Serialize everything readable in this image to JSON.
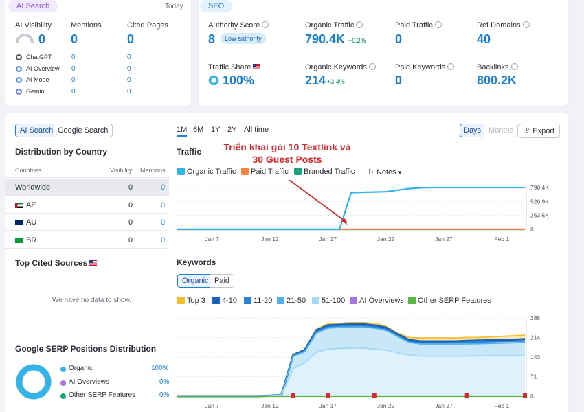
{
  "colors": {
    "accent": "#1c7fd6",
    "organic": "#34b3e8",
    "paid": "#f7843e",
    "branded": "#16a37a",
    "top3": "#f5bd29",
    "pos4_10": "#1863b8",
    "pos11_20": "#2a84d6",
    "pos21_50": "#53b1e8",
    "pos51_100": "#a3d8f3",
    "ai_overviews": "#a476e6",
    "other_serp": "#58b845",
    "annotation": "#d8282e"
  },
  "ai_card": {
    "tag": "AI Search",
    "date": "Today",
    "visibility": {
      "label": "AI Visibility",
      "value": "0"
    },
    "mentions": {
      "label": "Mentions",
      "value": "0"
    },
    "cited_pages": {
      "label": "Cited Pages",
      "value": "0"
    },
    "engines": [
      {
        "name": "ChatGPT",
        "icon": "chatgpt-icon",
        "mentions": "0",
        "cited": "0"
      },
      {
        "name": "AI Overview",
        "icon": "google-icon",
        "mentions": "0",
        "cited": "0"
      },
      {
        "name": "AI Mode",
        "icon": "google-icon",
        "mentions": "0",
        "cited": "0"
      },
      {
        "name": "Gemini",
        "icon": "gemini-icon",
        "mentions": "0",
        "cited": "0"
      }
    ]
  },
  "seo_card": {
    "tag": "SEO",
    "authority": {
      "label": "Authority Score",
      "value": "8",
      "badge": "Low authority"
    },
    "organic_traffic": {
      "label": "Organic Traffic",
      "value": "790.4K",
      "change": "+0.2%"
    },
    "paid_traffic": {
      "label": "Paid Traffic",
      "value": "0"
    },
    "ref_domains": {
      "label": "Ref.Domains",
      "value": "40"
    },
    "traffic_share": {
      "label": "Traffic Share",
      "value": "100%"
    },
    "organic_keywords": {
      "label": "Organic Keywords",
      "value": "214",
      "change": "+3.4%"
    },
    "paid_keywords": {
      "label": "Paid Keywords",
      "value": "0"
    },
    "backlinks": {
      "label": "Backlinks",
      "value": "800.2K"
    }
  },
  "left_panel": {
    "tabs": [
      "AI Search",
      "Google Search"
    ],
    "dist_title": "Distribution by Country",
    "columns": [
      "Countries",
      "Visibility",
      "Mentions"
    ],
    "rows": [
      {
        "name": "Worldwide",
        "flag": "",
        "visibility": "0",
        "mentions": "0"
      },
      {
        "name": "AE",
        "flag": "flag-ae-icon",
        "visibility": "0",
        "mentions": "0"
      },
      {
        "name": "AU",
        "flag": "flag-au-icon",
        "visibility": "0",
        "mentions": "0"
      },
      {
        "name": "BR",
        "flag": "flag-br-icon",
        "visibility": "0",
        "mentions": "0"
      }
    ],
    "cited_title": "Top Cited Sources",
    "no_data": "We have no data to show.",
    "serp_title": "Google SERP Positions Distribution",
    "serp_items": [
      {
        "label": "Organic",
        "value": "100%",
        "pct": 100,
        "color": "#34b3e8"
      },
      {
        "label": "AI Overviews",
        "value": "0%",
        "pct": 0,
        "color": "#a476e6"
      },
      {
        "label": "Other SERP Features",
        "value": "0%",
        "pct": 0,
        "color": "#16a37a"
      }
    ]
  },
  "toolbar": {
    "periods": [
      "1M",
      "6M",
      "1Y",
      "2Y",
      "All time"
    ],
    "active_period": "1M",
    "days": "Days",
    "months": "Months",
    "export": "Export"
  },
  "traffic": {
    "title": "Traffic",
    "legend": [
      "Organic Traffic",
      "Paid Traffic",
      "Branded Traffic"
    ],
    "notes": "Notes",
    "annotation_line1": "Triển khai gói 10 Textlink và",
    "annotation_line2": "30 Guest Posts"
  },
  "keywords": {
    "title": "Keywords",
    "tabs": [
      "Organic",
      "Paid"
    ],
    "legend": [
      "Top 3",
      "4-10",
      "11-20",
      "21-50",
      "51-100",
      "AI Overviews",
      "Other SERP Features"
    ]
  },
  "chart_data": [
    {
      "type": "line",
      "title": "Traffic",
      "x": [
        "Jan 4",
        "Jan 5",
        "Jan 6",
        "Jan 7",
        "Jan 8",
        "Jan 9",
        "Jan 10",
        "Jan 11",
        "Jan 12",
        "Jan 13",
        "Jan 14",
        "Jan 15",
        "Jan 16",
        "Jan 17",
        "Jan 18",
        "Jan 19",
        "Jan 20",
        "Jan 21",
        "Jan 22",
        "Jan 23",
        "Jan 24",
        "Jan 25",
        "Jan 26",
        "Jan 27",
        "Jan 28",
        "Jan 29",
        "Jan 30",
        "Jan 31",
        "Feb 1",
        "Feb 2",
        "Feb 3"
      ],
      "xticks": [
        "Jan 7",
        "Jan 12",
        "Jan 17",
        "Jan 22",
        "Jan 27",
        "Feb 1"
      ],
      "yticks": [
        "790.4K",
        "526.9K",
        "263.5K",
        "0"
      ],
      "ylim": [
        0,
        790400
      ],
      "series": [
        {
          "name": "Organic Traffic",
          "values": [
            0,
            0,
            0,
            0,
            0,
            0,
            0,
            0,
            0,
            0,
            0,
            0,
            0,
            0,
            0,
            690000,
            700000,
            705000,
            710000,
            740000,
            770000,
            785000,
            790000,
            790000,
            790000,
            790000,
            790000,
            790000,
            790000,
            790000,
            790400
          ]
        },
        {
          "name": "Paid Traffic",
          "values": [
            0,
            0,
            0,
            0,
            0,
            0,
            0,
            0,
            0,
            0,
            0,
            0,
            0,
            0,
            0,
            0,
            0,
            0,
            0,
            0,
            0,
            0,
            0,
            0,
            0,
            0,
            0,
            0,
            0,
            0,
            0
          ]
        },
        {
          "name": "Branded Traffic",
          "values": [
            0,
            0,
            0,
            0,
            0,
            0,
            0,
            0,
            0,
            0,
            0,
            0,
            0,
            0,
            0,
            0,
            0,
            0,
            0,
            0,
            0,
            0,
            0,
            0,
            0,
            0,
            0,
            0,
            0,
            0,
            0
          ]
        }
      ]
    },
    {
      "type": "area",
      "title": "Keywords",
      "x": [
        "Jan 4",
        "Jan 5",
        "Jan 6",
        "Jan 7",
        "Jan 8",
        "Jan 9",
        "Jan 10",
        "Jan 11",
        "Jan 12",
        "Jan 13",
        "Jan 14",
        "Jan 15",
        "Jan 16",
        "Jan 17",
        "Jan 18",
        "Jan 19",
        "Jan 20",
        "Jan 21",
        "Jan 22",
        "Jan 23",
        "Jan 24",
        "Jan 25",
        "Jan 26",
        "Jan 27",
        "Jan 28",
        "Jan 29",
        "Jan 30",
        "Jan 31",
        "Feb 1",
        "Feb 2",
        "Feb 3"
      ],
      "xticks": [
        "Jan 7",
        "Jan 12",
        "Jan 17",
        "Jan 22",
        "Jan 27",
        "Feb 1"
      ],
      "yticks": [
        "285",
        "214",
        "143",
        "71",
        "0"
      ],
      "ylim": [
        0,
        285
      ],
      "series": [
        {
          "name": "Top 3",
          "values": [
            0,
            0,
            0,
            0,
            0,
            0,
            0,
            0,
            2,
            5,
            152,
            170,
            244,
            263,
            265,
            268,
            268,
            265,
            255,
            230,
            214,
            212,
            212,
            212,
            212,
            214,
            214,
            216,
            218,
            220,
            222
          ]
        },
        {
          "name": "4-10",
          "values": [
            0,
            0,
            0,
            0,
            0,
            0,
            0,
            0,
            2,
            5,
            150,
            168,
            240,
            258,
            260,
            262,
            262,
            258,
            250,
            226,
            205,
            200,
            200,
            200,
            200,
            202,
            203,
            204,
            205,
            206,
            208
          ]
        },
        {
          "name": "11-20",
          "values": [
            0,
            0,
            0,
            0,
            0,
            0,
            0,
            0,
            2,
            5,
            148,
            165,
            235,
            253,
            255,
            256,
            256,
            252,
            244,
            222,
            200,
            194,
            194,
            194,
            195,
            196,
            197,
            198,
            199,
            200,
            200
          ]
        },
        {
          "name": "21-50",
          "values": [
            0,
            0,
            0,
            0,
            0,
            0,
            0,
            0,
            2,
            5,
            146,
            162,
            230,
            248,
            250,
            252,
            252,
            248,
            240,
            218,
            196,
            190,
            190,
            190,
            190,
            190,
            191,
            192,
            193,
            194,
            195
          ]
        },
        {
          "name": "51-100",
          "values": [
            0,
            0,
            0,
            0,
            0,
            0,
            0,
            0,
            2,
            5,
            100,
            122,
            160,
            172,
            174,
            175,
            175,
            172,
            168,
            158,
            150,
            146,
            146,
            146,
            146,
            146,
            147,
            148,
            148,
            148,
            148
          ]
        },
        {
          "name": "AI Overviews",
          "values": [
            0,
            0,
            0,
            0,
            0,
            0,
            0,
            0,
            0,
            0,
            0,
            0,
            0,
            0,
            0,
            0,
            0,
            0,
            0,
            0,
            0,
            0,
            0,
            0,
            0,
            0,
            0,
            0,
            0,
            0,
            0
          ]
        },
        {
          "name": "Other SERP Features",
          "values": [
            0,
            0,
            0,
            0,
            0,
            0,
            0,
            0,
            0,
            0,
            0,
            0,
            0,
            0,
            0,
            0,
            0,
            0,
            0,
            0,
            0,
            0,
            0,
            0,
            0,
            0,
            0,
            0,
            0,
            0,
            0
          ]
        }
      ]
    },
    {
      "type": "pie",
      "title": "Google SERP Positions Distribution",
      "categories": [
        "Organic",
        "AI Overviews",
        "Other SERP Features"
      ],
      "values": [
        100,
        0,
        0
      ]
    }
  ]
}
